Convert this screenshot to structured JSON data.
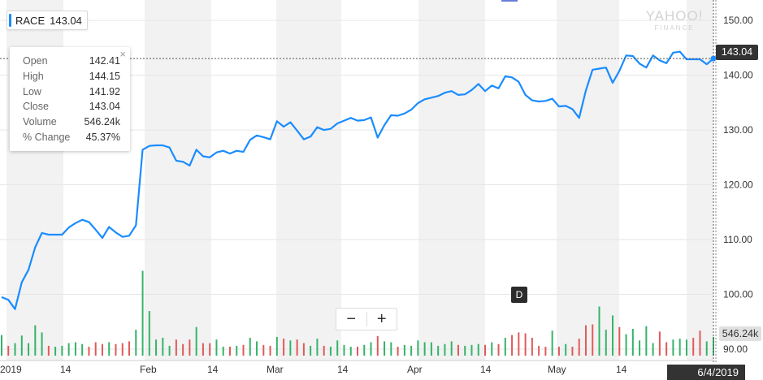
{
  "ticker": {
    "symbol": "RACE",
    "last": "143.04"
  },
  "tooltip": {
    "rows": [
      {
        "label": "Open",
        "value": "142.41"
      },
      {
        "label": "High",
        "value": "144.15"
      },
      {
        "label": "Low",
        "value": "141.92"
      },
      {
        "label": "Close",
        "value": "143.04"
      },
      {
        "label": "Volume",
        "value": "546.24k"
      },
      {
        "label": "% Change",
        "value": "45.37%"
      }
    ],
    "close_glyph": "×"
  },
  "zoom": {
    "minus": "−",
    "plus": "+"
  },
  "dividend_marker": "D",
  "watermark": {
    "line1": "YAHOO!",
    "line2": "FINANCE"
  },
  "badges": {
    "price": "143.04",
    "volume": "546.24k",
    "date": "6/4/2019"
  },
  "colors": {
    "line": "#1a8cff",
    "vol_up": "#35b36a",
    "vol_down": "#e05a5a",
    "band": "#f2f2f2",
    "grid": "#e6e6e6"
  },
  "chart_data": {
    "type": "line",
    "y_ticks": [
      "150.00",
      "140.00",
      "130.00",
      "120.00",
      "110.00",
      "100.00",
      "90.00"
    ],
    "ylim": [
      90,
      151.5
    ],
    "x_tick_labels": [
      "2019",
      "14",
      "Feb",
      "14",
      "Mar",
      "14",
      "Apr",
      "14",
      "May",
      "14"
    ],
    "close": [
      99.5,
      99.0,
      97.3,
      102.2,
      104.5,
      108.6,
      111.2,
      110.9,
      110.9,
      110.9,
      112.2,
      113.0,
      113.6,
      113.2,
      111.8,
      110.3,
      112.3,
      111.3,
      110.5,
      110.7,
      112.6,
      126.4,
      127.1,
      127.2,
      127.2,
      126.8,
      124.4,
      124.2,
      123.5,
      126.4,
      125.2,
      125.0,
      125.9,
      126.2,
      125.7,
      126.2,
      126.0,
      128.2,
      129.0,
      128.7,
      128.3,
      131.6,
      130.6,
      131.4,
      129.9,
      128.3,
      128.8,
      130.5,
      130.0,
      130.2,
      131.2,
      131.7,
      132.2,
      131.7,
      131.8,
      132.3,
      128.6,
      130.9,
      132.7,
      132.6,
      133.0,
      133.7,
      134.9,
      135.6,
      135.9,
      136.2,
      136.8,
      137.1,
      136.4,
      136.5,
      137.3,
      138.4,
      137.1,
      138.1,
      137.6,
      139.8,
      139.6,
      138.8,
      136.4,
      135.4,
      135.2,
      135.3,
      135.7,
      134.3,
      134.4,
      133.8,
      132.2,
      137.2,
      141.0,
      141.2,
      141.4,
      138.6,
      140.8,
      143.6,
      143.5,
      142.1,
      141.4,
      143.6,
      142.7,
      142.2,
      144.1,
      144.3,
      142.9,
      142.9,
      142.9,
      142.0,
      143.04
    ],
    "volume": [
      {
        "v": 46,
        "up": true
      },
      {
        "v": 22,
        "up": false
      },
      {
        "v": 28,
        "up": true
      },
      {
        "v": 45,
        "up": true
      },
      {
        "v": 28,
        "up": true
      },
      {
        "v": 68,
        "up": true
      },
      {
        "v": 52,
        "up": true
      },
      {
        "v": 22,
        "up": false
      },
      {
        "v": 20,
        "up": true
      },
      {
        "v": 22,
        "up": true
      },
      {
        "v": 28,
        "up": true
      },
      {
        "v": 30,
        "up": true
      },
      {
        "v": 26,
        "up": true
      },
      {
        "v": 20,
        "up": false
      },
      {
        "v": 30,
        "up": false
      },
      {
        "v": 26,
        "up": false
      },
      {
        "v": 30,
        "up": true
      },
      {
        "v": 26,
        "up": false
      },
      {
        "v": 28,
        "up": false
      },
      {
        "v": 32,
        "up": false
      },
      {
        "v": 58,
        "up": true
      },
      {
        "v": 190,
        "up": true
      },
      {
        "v": 100,
        "up": true
      },
      {
        "v": 36,
        "up": true
      },
      {
        "v": 40,
        "up": true
      },
      {
        "v": 22,
        "up": true
      },
      {
        "v": 36,
        "up": false
      },
      {
        "v": 26,
        "up": false
      },
      {
        "v": 36,
        "up": false
      },
      {
        "v": 64,
        "up": true
      },
      {
        "v": 28,
        "up": false
      },
      {
        "v": 28,
        "up": false
      },
      {
        "v": 36,
        "up": true
      },
      {
        "v": 20,
        "up": true
      },
      {
        "v": 20,
        "up": false
      },
      {
        "v": 22,
        "up": true
      },
      {
        "v": 24,
        "up": false
      },
      {
        "v": 40,
        "up": true
      },
      {
        "v": 32,
        "up": true
      },
      {
        "v": 24,
        "up": false
      },
      {
        "v": 22,
        "up": false
      },
      {
        "v": 42,
        "up": true
      },
      {
        "v": 38,
        "up": false
      },
      {
        "v": 34,
        "up": true
      },
      {
        "v": 36,
        "up": false
      },
      {
        "v": 28,
        "up": false
      },
      {
        "v": 22,
        "up": true
      },
      {
        "v": 38,
        "up": true
      },
      {
        "v": 22,
        "up": false
      },
      {
        "v": 20,
        "up": true
      },
      {
        "v": 34,
        "up": true
      },
      {
        "v": 24,
        "up": true
      },
      {
        "v": 20,
        "up": true
      },
      {
        "v": 20,
        "up": false
      },
      {
        "v": 24,
        "up": true
      },
      {
        "v": 30,
        "up": true
      },
      {
        "v": 44,
        "up": false
      },
      {
        "v": 32,
        "up": true
      },
      {
        "v": 30,
        "up": true
      },
      {
        "v": 20,
        "up": false
      },
      {
        "v": 24,
        "up": true
      },
      {
        "v": 22,
        "up": true
      },
      {
        "v": 34,
        "up": true
      },
      {
        "v": 30,
        "up": true
      },
      {
        "v": 30,
        "up": true
      },
      {
        "v": 22,
        "up": true
      },
      {
        "v": 26,
        "up": true
      },
      {
        "v": 32,
        "up": true
      },
      {
        "v": 24,
        "up": false
      },
      {
        "v": 22,
        "up": true
      },
      {
        "v": 24,
        "up": true
      },
      {
        "v": 26,
        "up": true
      },
      {
        "v": 24,
        "up": false
      },
      {
        "v": 30,
        "up": true
      },
      {
        "v": 26,
        "up": false
      },
      {
        "v": 40,
        "up": true
      },
      {
        "v": 46,
        "up": false
      },
      {
        "v": 52,
        "up": false
      },
      {
        "v": 50,
        "up": false
      },
      {
        "v": 40,
        "up": false
      },
      {
        "v": 22,
        "up": false
      },
      {
        "v": 20,
        "up": false
      },
      {
        "v": 56,
        "up": true
      },
      {
        "v": 20,
        "up": false
      },
      {
        "v": 26,
        "up": true
      },
      {
        "v": 20,
        "up": false
      },
      {
        "v": 38,
        "up": false
      },
      {
        "v": 68,
        "up": false
      },
      {
        "v": 70,
        "up": false
      },
      {
        "v": 110,
        "up": true
      },
      {
        "v": 58,
        "up": true
      },
      {
        "v": 90,
        "up": true
      },
      {
        "v": 64,
        "up": false
      },
      {
        "v": 48,
        "up": true
      },
      {
        "v": 60,
        "up": true
      },
      {
        "v": 34,
        "up": true
      },
      {
        "v": 66,
        "up": true
      },
      {
        "v": 28,
        "up": true
      },
      {
        "v": 54,
        "up": false
      },
      {
        "v": 30,
        "up": false
      },
      {
        "v": 36,
        "up": true
      },
      {
        "v": 38,
        "up": true
      },
      {
        "v": 36,
        "up": true
      },
      {
        "v": 40,
        "up": false
      },
      {
        "v": 56,
        "up": false
      },
      {
        "v": 32,
        "up": true
      },
      {
        "v": 42,
        "up": true
      }
    ]
  }
}
